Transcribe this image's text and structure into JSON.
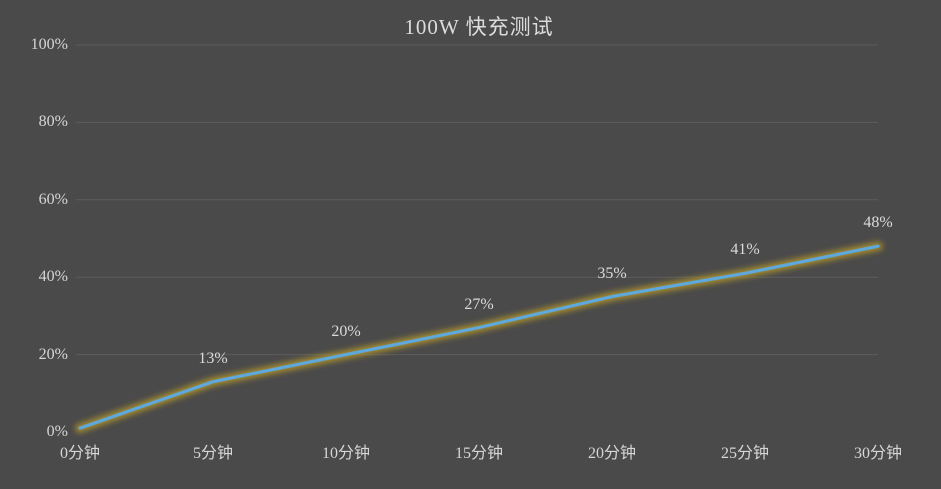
{
  "chart_data": {
    "type": "line",
    "title": "100W 快充测试",
    "categories": [
      "0分钟",
      "5分钟",
      "10分钟",
      "15分钟",
      "20分钟",
      "25分钟",
      "30分钟"
    ],
    "series": [
      {
        "values": [
          1,
          13,
          20,
          27,
          35,
          41,
          48
        ]
      }
    ],
    "data_labels": [
      "",
      "13%",
      "20%",
      "27%",
      "35%",
      "41%",
      "48%"
    ],
    "xlabel": "",
    "ylabel": "",
    "ylim": [
      0,
      100
    ],
    "yticks": [
      {
        "value": 0,
        "label": "0%"
      },
      {
        "value": 20,
        "label": "20%"
      },
      {
        "value": 40,
        "label": "40%"
      },
      {
        "value": 60,
        "label": "60%"
      },
      {
        "value": 80,
        "label": "80%"
      },
      {
        "value": 100,
        "label": "100%"
      }
    ],
    "grid": "horizontal",
    "legend_position": "none",
    "colors": {
      "background": "#4a4a4a",
      "text": "#d6d6d6",
      "line": "#5fa8dc",
      "line_glow": "#b89b2a",
      "gridline": "#7c7c7c"
    }
  }
}
